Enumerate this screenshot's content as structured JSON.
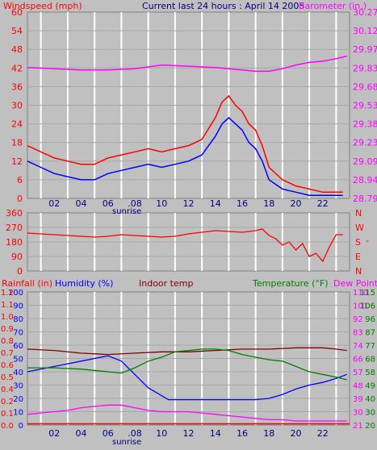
{
  "colors": {
    "background": "#c0c0c0",
    "plot_bg": "#c0c0c0",
    "grid": "#ffffff",
    "wind": "#ff0000",
    "gust": "#0000ff",
    "baro": "#ff00ff",
    "title": "#000080",
    "humidity": "#0000ff",
    "indoor": "#800000",
    "temperature": "#008000",
    "dewpoint": "#ff00ff",
    "rainfall": "#ff0000",
    "direction": "#ff0000"
  },
  "chart_data": [
    {
      "type": "line",
      "title": "Current last 24 hours : April 14 2005",
      "left_label": "Windspeed (mph)",
      "right_label": "Barometer (in.)",
      "x_ticks": [
        "02",
        "04",
        "06",
        ".08",
        "10",
        "12",
        "14",
        "16",
        "18",
        "20",
        "22"
      ],
      "x_marker": "sunrise",
      "y_ticks_left": [
        "0",
        "6",
        "12",
        "18",
        "24",
        "30",
        "36",
        "42",
        "48",
        "54",
        "60"
      ],
      "y_ticks_right": [
        "28.79",
        "28.94",
        "29.09",
        "29.23",
        "29.38",
        "29.53",
        "29.68",
        "29.83",
        "29.97",
        "30.12",
        "30.27"
      ],
      "xlim": [
        0,
        24
      ],
      "ylim": [
        0,
        60
      ],
      "ylim_right": [
        28.79,
        30.27
      ],
      "series": [
        {
          "key": "wind",
          "x": [
            0,
            1,
            2,
            3,
            4,
            5,
            6,
            7,
            8,
            9,
            10,
            11,
            12,
            13,
            14,
            14.5,
            15,
            15.5,
            16,
            16.5,
            17,
            17.5,
            18,
            19,
            20,
            21,
            22,
            23,
            23.5
          ],
          "y": [
            17,
            15,
            13,
            12,
            11,
            11,
            13,
            14,
            15,
            16,
            15,
            16,
            17,
            19,
            26,
            31,
            33,
            30,
            28,
            24,
            22,
            17,
            10,
            6,
            4,
            3,
            2,
            2,
            2
          ]
        },
        {
          "key": "gust",
          "x": [
            0,
            1,
            2,
            3,
            4,
            5,
            6,
            7,
            8,
            9,
            10,
            11,
            12,
            13,
            14,
            14.5,
            15,
            15.5,
            16,
            16.5,
            17,
            17.5,
            18,
            19,
            20,
            21,
            22,
            23,
            23.5
          ],
          "y": [
            12,
            10,
            8,
            7,
            6,
            6,
            8,
            9,
            10,
            11,
            10,
            11,
            12,
            14,
            20,
            24,
            26,
            24,
            22,
            18,
            16,
            12,
            6,
            3,
            2,
            1,
            1,
            1,
            1
          ]
        },
        {
          "key": "baro",
          "x": [
            0,
            2,
            4,
            6,
            8,
            10,
            12,
            14,
            16,
            17,
            18,
            19,
            20,
            21,
            22,
            23,
            23.8
          ],
          "y": [
            29.83,
            29.82,
            29.81,
            29.81,
            29.82,
            29.85,
            29.84,
            29.83,
            29.81,
            29.8,
            29.8,
            29.82,
            29.85,
            29.87,
            29.88,
            29.9,
            29.92
          ]
        }
      ]
    },
    {
      "type": "line",
      "series_name": "wind direction",
      "y_ticks_left": [
        "0",
        "90",
        "180",
        "270",
        "360"
      ],
      "y_ticks_right": [
        "N",
        "E",
        "S",
        "W",
        "N"
      ],
      "xlim": [
        0,
        24
      ],
      "ylim": [
        0,
        360
      ],
      "x": [
        0,
        1,
        2,
        3,
        4,
        5,
        6,
        7,
        8,
        9,
        10,
        11,
        12,
        13,
        14,
        15,
        16,
        17,
        17.5,
        18,
        18.5,
        19,
        19.5,
        20,
        20.5,
        21,
        21.5,
        22,
        22.5,
        23,
        23.5
      ],
      "y": [
        235,
        230,
        225,
        220,
        215,
        210,
        215,
        225,
        220,
        215,
        210,
        215,
        230,
        240,
        250,
        245,
        240,
        250,
        260,
        220,
        200,
        160,
        180,
        130,
        170,
        90,
        110,
        60,
        150,
        225,
        225
      ]
    },
    {
      "type": "line",
      "labels": {
        "rainfall": "Rainfall (in)",
        "humidity": "Humidity (%)",
        "indoor": "Indoor temp",
        "temperature": "Temperature (°F)",
        "dewpoint": "Dew Point"
      },
      "x_ticks": [
        "02",
        "04",
        "06",
        ".08",
        "10",
        "12",
        "14",
        "16",
        "18",
        "20",
        "22"
      ],
      "x_marker": "sunrise",
      "y_ticks_humidity": [
        "0",
        "10",
        "20",
        "30",
        "40",
        "50",
        "60",
        "70",
        "80",
        "90",
        "100"
      ],
      "y_ticks_rain": [
        "0.0",
        "0.1",
        "0.2",
        "0.4",
        "0.5",
        "0.6",
        "0.7",
        "0.8",
        "0.9",
        "1.0",
        "1.1",
        "1.2"
      ],
      "y_ticks_right_outer": [
        "20",
        "30",
        "40",
        "49",
        "58",
        "68",
        "77",
        "87",
        "96",
        "106",
        "115"
      ],
      "y_ticks_right_inner": [
        "21",
        "30",
        "39",
        "48",
        "57",
        "66",
        "74",
        "83",
        "92",
        "101",
        "110"
      ],
      "xlim": [
        0,
        24
      ],
      "ylim": [
        0,
        100
      ],
      "series": [
        {
          "key": "humidity",
          "x": [
            0,
            1,
            2,
            3,
            4,
            5,
            6,
            7,
            8,
            9,
            10,
            10.5,
            12,
            14,
            16,
            17,
            18,
            19,
            20,
            21,
            22,
            23,
            23.8
          ],
          "y": [
            40,
            42,
            44,
            46,
            48,
            50,
            52,
            48,
            38,
            28,
            22,
            19,
            19,
            19,
            19,
            19,
            20,
            23,
            27,
            30,
            32,
            35,
            38
          ]
        },
        {
          "key": "indoor",
          "x": [
            0,
            2,
            4,
            6,
            8,
            10,
            12,
            14,
            16,
            18,
            20,
            22,
            23,
            23.8
          ],
          "y": [
            57,
            56,
            54,
            53,
            54,
            55,
            55,
            56,
            57,
            57,
            58,
            58,
            57,
            56
          ]
        },
        {
          "key": "temperature",
          "x": [
            0,
            2,
            4,
            6,
            7,
            8,
            9,
            10,
            11,
            12,
            13,
            14,
            15,
            16,
            17,
            18,
            19,
            20,
            21,
            22,
            23,
            23.8
          ],
          "y": [
            43,
            43,
            42,
            40,
            39,
            43,
            48,
            51,
            55,
            56,
            57,
            57,
            56,
            53,
            51,
            49,
            48,
            44,
            40,
            38,
            36,
            34
          ]
        },
        {
          "key": "dewpoint",
          "x": [
            0,
            1,
            2,
            3,
            4,
            5,
            6,
            7,
            8,
            9,
            10,
            11,
            12,
            13,
            14,
            15,
            16,
            17,
            18,
            19,
            20,
            21,
            22,
            23,
            23.8
          ],
          "y": [
            8,
            9,
            10,
            11,
            13,
            14,
            15,
            15,
            13,
            11,
            10,
            10,
            10,
            9,
            8,
            7,
            6,
            5,
            4,
            4,
            3,
            3,
            3,
            3,
            3
          ]
        },
        {
          "key": "rainfall",
          "x": [
            0,
            24
          ],
          "y": [
            0.3,
            0.3
          ]
        }
      ]
    }
  ]
}
